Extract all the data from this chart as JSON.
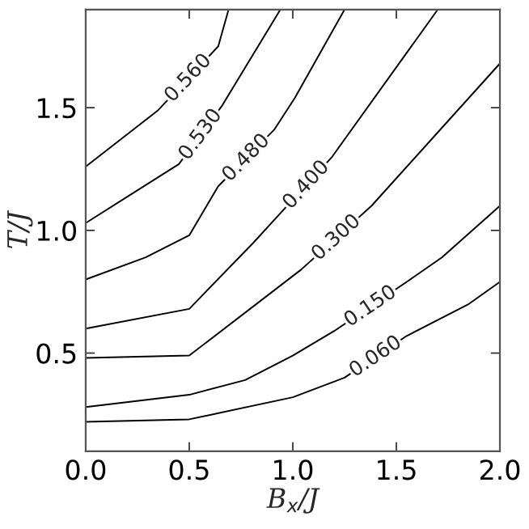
{
  "chart_data": {
    "type": "line",
    "xlabel": "B$_{x}$/J",
    "ylabel": "T/J",
    "xlim": [
      0.0,
      2.0
    ],
    "ylim": [
      0.1,
      1.9
    ],
    "xticks": [
      {
        "value": 0.0,
        "label": "0.0"
      },
      {
        "value": 0.5,
        "label": "0.5"
      },
      {
        "value": 1.0,
        "label": "1.0"
      },
      {
        "value": 1.5,
        "label": "1.5"
      },
      {
        "value": 2.0,
        "label": "2.0"
      }
    ],
    "yticks": [
      0.5,
      {
        "value": 1.0,
        "label": "1.0"
      },
      1.5
    ],
    "grid": false,
    "legend": false,
    "series": [
      {
        "name": "0.560",
        "color": "#000000",
        "x": [
          0,
          0.35,
          0.64,
          0.69
        ],
        "values": [
          1.26,
          1.49,
          1.75,
          1.9
        ]
      },
      {
        "name": "0.530",
        "color": "#000000",
        "x": [
          0,
          0.45,
          0.66,
          0.94
        ],
        "values": [
          1.03,
          1.27,
          1.51,
          1.9
        ]
      },
      {
        "name": "0.480",
        "color": "#000000",
        "x": [
          0,
          0.29,
          0.5,
          0.64,
          0.91,
          1.01,
          1.25
        ],
        "values": [
          0.8,
          0.89,
          0.98,
          1.18,
          1.41,
          1.54,
          1.9
        ]
      },
      {
        "name": "0.400",
        "color": "#000000",
        "x": [
          0,
          0.5,
          0.81,
          0.94,
          1.19,
          1.7
        ],
        "values": [
          0.6,
          0.68,
          0.95,
          1.07,
          1.3,
          1.9
        ]
      },
      {
        "name": "0.300",
        "color": "#000000",
        "x": [
          0,
          0.5,
          1.04,
          1.38,
          2.0
        ],
        "values": [
          0.48,
          0.49,
          0.84,
          1.1,
          1.68
        ]
      },
      {
        "name": "0.150",
        "color": "#000000",
        "x": [
          0,
          0.5,
          0.77,
          1.0,
          1.2,
          1.55,
          1.72,
          2.0
        ],
        "values": [
          0.28,
          0.33,
          0.39,
          0.49,
          0.59,
          0.79,
          0.89,
          1.1
        ]
      },
      {
        "name": "0.060",
        "color": "#000000",
        "x": [
          0,
          0.5,
          1.0,
          1.25,
          1.55,
          1.85,
          2.0
        ],
        "values": [
          0.22,
          0.23,
          0.32,
          0.4,
          0.57,
          0.7,
          0.79
        ]
      }
    ]
  }
}
